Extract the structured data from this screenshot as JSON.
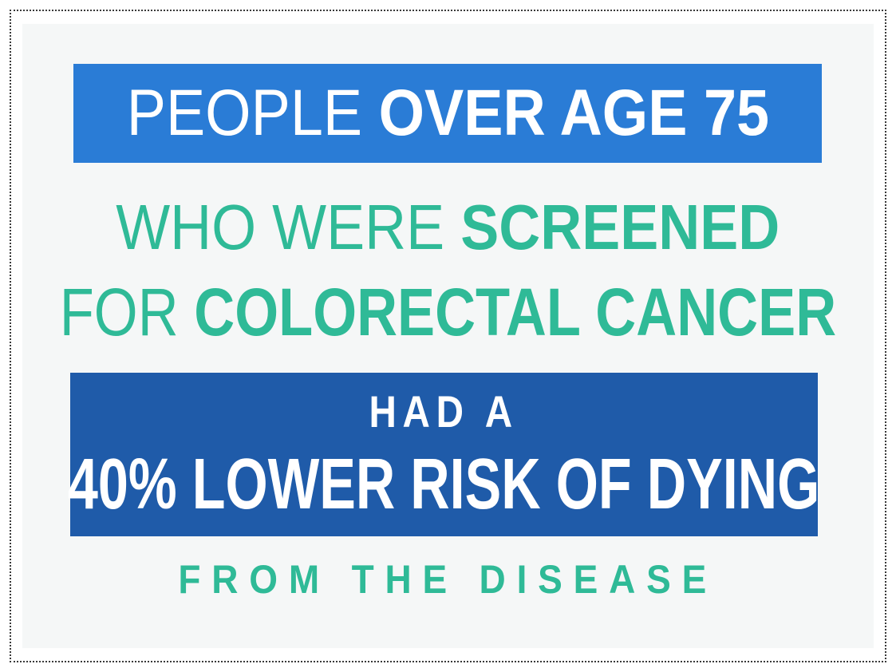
{
  "colors": {
    "accent_blue": "#2a7cd6",
    "dark_blue": "#1f5ba9",
    "teal": "#2fba97",
    "panel_bg": "#f5f7f7",
    "text_white": "#ffffff",
    "border_dot": "#3a3a3a"
  },
  "infographic": {
    "headline": {
      "light": "PEOPLE ",
      "bold": "OVER AGE 75"
    },
    "screened_line": {
      "light": "WHO WERE ",
      "bold": "SCREENED"
    },
    "colorectal_line": {
      "light": "FOR ",
      "bold": "COLORECTAL CANCER"
    },
    "risk_banner": {
      "intro": "HAD A",
      "statistic": "40% LOWER RISK OF DYING"
    },
    "footer": "FROM THE DISEASE"
  }
}
